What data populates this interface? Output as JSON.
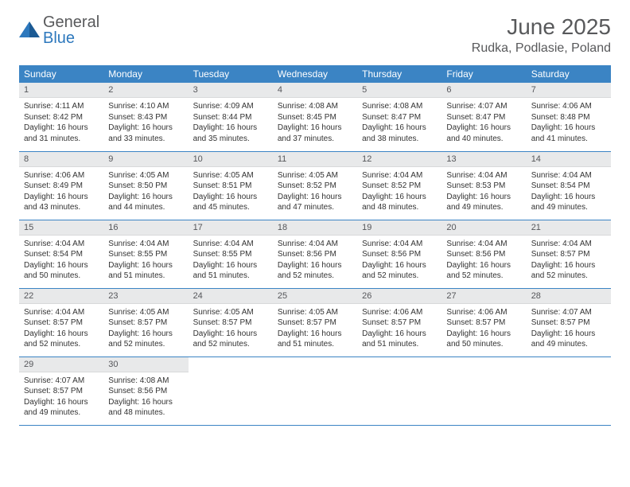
{
  "logo": {
    "text_general": "General",
    "text_blue": "Blue"
  },
  "header": {
    "month": "June 2025",
    "location": "Rudka, Podlasie, Poland"
  },
  "colors": {
    "header_bg": "#3b84c4",
    "daynum_bg": "#e8e9ea",
    "rule": "#3b84c4"
  },
  "dayNames": [
    "Sunday",
    "Monday",
    "Tuesday",
    "Wednesday",
    "Thursday",
    "Friday",
    "Saturday"
  ],
  "weeks": [
    [
      {
        "n": "1",
        "sunrise": "Sunrise: 4:11 AM",
        "sunset": "Sunset: 8:42 PM",
        "d1": "Daylight: 16 hours",
        "d2": "and 31 minutes."
      },
      {
        "n": "2",
        "sunrise": "Sunrise: 4:10 AM",
        "sunset": "Sunset: 8:43 PM",
        "d1": "Daylight: 16 hours",
        "d2": "and 33 minutes."
      },
      {
        "n": "3",
        "sunrise": "Sunrise: 4:09 AM",
        "sunset": "Sunset: 8:44 PM",
        "d1": "Daylight: 16 hours",
        "d2": "and 35 minutes."
      },
      {
        "n": "4",
        "sunrise": "Sunrise: 4:08 AM",
        "sunset": "Sunset: 8:45 PM",
        "d1": "Daylight: 16 hours",
        "d2": "and 37 minutes."
      },
      {
        "n": "5",
        "sunrise": "Sunrise: 4:08 AM",
        "sunset": "Sunset: 8:47 PM",
        "d1": "Daylight: 16 hours",
        "d2": "and 38 minutes."
      },
      {
        "n": "6",
        "sunrise": "Sunrise: 4:07 AM",
        "sunset": "Sunset: 8:47 PM",
        "d1": "Daylight: 16 hours",
        "d2": "and 40 minutes."
      },
      {
        "n": "7",
        "sunrise": "Sunrise: 4:06 AM",
        "sunset": "Sunset: 8:48 PM",
        "d1": "Daylight: 16 hours",
        "d2": "and 41 minutes."
      }
    ],
    [
      {
        "n": "8",
        "sunrise": "Sunrise: 4:06 AM",
        "sunset": "Sunset: 8:49 PM",
        "d1": "Daylight: 16 hours",
        "d2": "and 43 minutes."
      },
      {
        "n": "9",
        "sunrise": "Sunrise: 4:05 AM",
        "sunset": "Sunset: 8:50 PM",
        "d1": "Daylight: 16 hours",
        "d2": "and 44 minutes."
      },
      {
        "n": "10",
        "sunrise": "Sunrise: 4:05 AM",
        "sunset": "Sunset: 8:51 PM",
        "d1": "Daylight: 16 hours",
        "d2": "and 45 minutes."
      },
      {
        "n": "11",
        "sunrise": "Sunrise: 4:05 AM",
        "sunset": "Sunset: 8:52 PM",
        "d1": "Daylight: 16 hours",
        "d2": "and 47 minutes."
      },
      {
        "n": "12",
        "sunrise": "Sunrise: 4:04 AM",
        "sunset": "Sunset: 8:52 PM",
        "d1": "Daylight: 16 hours",
        "d2": "and 48 minutes."
      },
      {
        "n": "13",
        "sunrise": "Sunrise: 4:04 AM",
        "sunset": "Sunset: 8:53 PM",
        "d1": "Daylight: 16 hours",
        "d2": "and 49 minutes."
      },
      {
        "n": "14",
        "sunrise": "Sunrise: 4:04 AM",
        "sunset": "Sunset: 8:54 PM",
        "d1": "Daylight: 16 hours",
        "d2": "and 49 minutes."
      }
    ],
    [
      {
        "n": "15",
        "sunrise": "Sunrise: 4:04 AM",
        "sunset": "Sunset: 8:54 PM",
        "d1": "Daylight: 16 hours",
        "d2": "and 50 minutes."
      },
      {
        "n": "16",
        "sunrise": "Sunrise: 4:04 AM",
        "sunset": "Sunset: 8:55 PM",
        "d1": "Daylight: 16 hours",
        "d2": "and 51 minutes."
      },
      {
        "n": "17",
        "sunrise": "Sunrise: 4:04 AM",
        "sunset": "Sunset: 8:55 PM",
        "d1": "Daylight: 16 hours",
        "d2": "and 51 minutes."
      },
      {
        "n": "18",
        "sunrise": "Sunrise: 4:04 AM",
        "sunset": "Sunset: 8:56 PM",
        "d1": "Daylight: 16 hours",
        "d2": "and 52 minutes."
      },
      {
        "n": "19",
        "sunrise": "Sunrise: 4:04 AM",
        "sunset": "Sunset: 8:56 PM",
        "d1": "Daylight: 16 hours",
        "d2": "and 52 minutes."
      },
      {
        "n": "20",
        "sunrise": "Sunrise: 4:04 AM",
        "sunset": "Sunset: 8:56 PM",
        "d1": "Daylight: 16 hours",
        "d2": "and 52 minutes."
      },
      {
        "n": "21",
        "sunrise": "Sunrise: 4:04 AM",
        "sunset": "Sunset: 8:57 PM",
        "d1": "Daylight: 16 hours",
        "d2": "and 52 minutes."
      }
    ],
    [
      {
        "n": "22",
        "sunrise": "Sunrise: 4:04 AM",
        "sunset": "Sunset: 8:57 PM",
        "d1": "Daylight: 16 hours",
        "d2": "and 52 minutes."
      },
      {
        "n": "23",
        "sunrise": "Sunrise: 4:05 AM",
        "sunset": "Sunset: 8:57 PM",
        "d1": "Daylight: 16 hours",
        "d2": "and 52 minutes."
      },
      {
        "n": "24",
        "sunrise": "Sunrise: 4:05 AM",
        "sunset": "Sunset: 8:57 PM",
        "d1": "Daylight: 16 hours",
        "d2": "and 52 minutes."
      },
      {
        "n": "25",
        "sunrise": "Sunrise: 4:05 AM",
        "sunset": "Sunset: 8:57 PM",
        "d1": "Daylight: 16 hours",
        "d2": "and 51 minutes."
      },
      {
        "n": "26",
        "sunrise": "Sunrise: 4:06 AM",
        "sunset": "Sunset: 8:57 PM",
        "d1": "Daylight: 16 hours",
        "d2": "and 51 minutes."
      },
      {
        "n": "27",
        "sunrise": "Sunrise: 4:06 AM",
        "sunset": "Sunset: 8:57 PM",
        "d1": "Daylight: 16 hours",
        "d2": "and 50 minutes."
      },
      {
        "n": "28",
        "sunrise": "Sunrise: 4:07 AM",
        "sunset": "Sunset: 8:57 PM",
        "d1": "Daylight: 16 hours",
        "d2": "and 49 minutes."
      }
    ],
    [
      {
        "n": "29",
        "sunrise": "Sunrise: 4:07 AM",
        "sunset": "Sunset: 8:57 PM",
        "d1": "Daylight: 16 hours",
        "d2": "and 49 minutes."
      },
      {
        "n": "30",
        "sunrise": "Sunrise: 4:08 AM",
        "sunset": "Sunset: 8:56 PM",
        "d1": "Daylight: 16 hours",
        "d2": "and 48 minutes."
      },
      null,
      null,
      null,
      null,
      null
    ]
  ]
}
